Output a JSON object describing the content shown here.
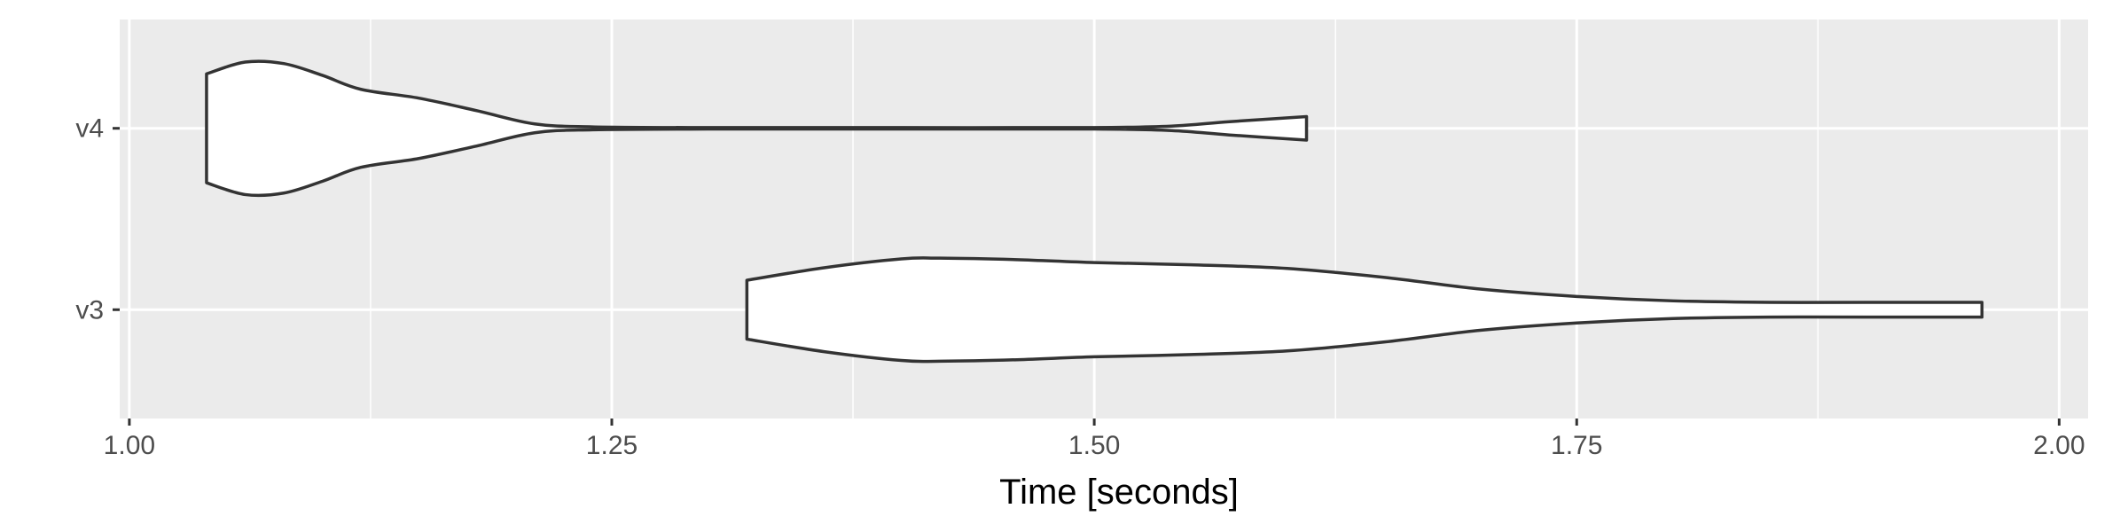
{
  "chart_data": {
    "type": "violin",
    "orientation": "horizontal",
    "xlabel": "Time [seconds]",
    "ylabel": "",
    "xlim": [
      0.995,
      2.015
    ],
    "xticks": [
      1.0,
      1.25,
      1.5,
      1.75,
      2.0
    ],
    "xtick_labels": [
      "1.00",
      "1.25",
      "1.50",
      "1.75",
      "2.00"
    ],
    "categories": [
      "v3",
      "v4"
    ],
    "grid": true,
    "legend": "none",
    "colors": {
      "panel": "#ebebeb",
      "grid_major": "#ffffff",
      "violin_fill": "#ffffff",
      "violin_stroke": "#333333"
    },
    "series": [
      {
        "category": "v4",
        "min": 1.04,
        "max": 1.61,
        "density": [
          [
            1.04,
            0.74
          ],
          [
            1.06,
            0.9
          ],
          [
            1.08,
            0.88
          ],
          [
            1.1,
            0.72
          ],
          [
            1.12,
            0.53
          ],
          [
            1.15,
            0.41
          ],
          [
            1.18,
            0.24
          ],
          [
            1.21,
            0.06
          ],
          [
            1.24,
            0.02
          ],
          [
            1.3,
            0.01
          ],
          [
            1.4,
            0.01
          ],
          [
            1.5,
            0.01
          ],
          [
            1.54,
            0.03
          ],
          [
            1.57,
            0.09
          ],
          [
            1.61,
            0.16
          ]
        ]
      },
      {
        "category": "v3",
        "min": 1.32,
        "max": 1.96,
        "density": [
          [
            1.32,
            0.4
          ],
          [
            1.36,
            0.57
          ],
          [
            1.4,
            0.69
          ],
          [
            1.42,
            0.7
          ],
          [
            1.46,
            0.68
          ],
          [
            1.5,
            0.64
          ],
          [
            1.55,
            0.61
          ],
          [
            1.6,
            0.56
          ],
          [
            1.65,
            0.44
          ],
          [
            1.7,
            0.28
          ],
          [
            1.75,
            0.18
          ],
          [
            1.8,
            0.12
          ],
          [
            1.85,
            0.1
          ],
          [
            1.9,
            0.1
          ],
          [
            1.96,
            0.1
          ]
        ]
      }
    ]
  }
}
